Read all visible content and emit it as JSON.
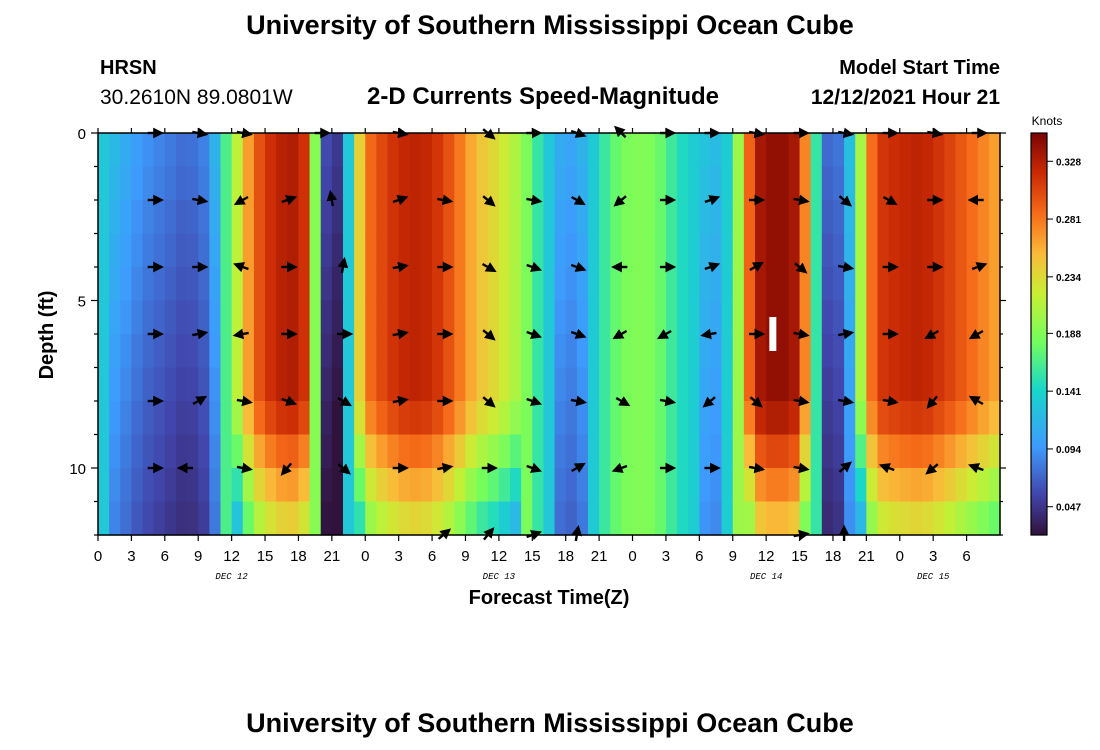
{
  "header": {
    "title": "University of Southern Mississippi Ocean Cube",
    "station": "HRSN",
    "coords": "30.2610N  89.0801W",
    "subtitle": "2-D Currents Speed-Magnitude",
    "model_start_label": "Model Start Time",
    "model_start_value": "12/12/2021 Hour 21"
  },
  "footer": {
    "title": "University of Southern Mississippi Ocean Cube"
  },
  "chart_data": {
    "type": "heatmap",
    "title": "2-D Currents Speed-Magnitude",
    "xlabel": "Forecast Time(Z)",
    "ylabel": "Depth (ft)",
    "colorbar_label": "Knots",
    "colorbar_ticks": [
      0.047,
      0.094,
      0.141,
      0.188,
      0.234,
      0.281,
      0.328
    ],
    "colorbar_range": [
      0.024,
      0.351
    ],
    "x_range_hours": [
      0,
      81
    ],
    "y_range_ft": [
      0,
      12
    ],
    "x_ticks": [
      {
        "h": 0,
        "label": "0"
      },
      {
        "h": 3,
        "label": "3"
      },
      {
        "h": 6,
        "label": "6"
      },
      {
        "h": 9,
        "label": "9"
      },
      {
        "h": 12,
        "label": "12"
      },
      {
        "h": 15,
        "label": "15"
      },
      {
        "h": 18,
        "label": "18"
      },
      {
        "h": 21,
        "label": "21"
      },
      {
        "h": 24,
        "label": "0"
      },
      {
        "h": 27,
        "label": "3"
      },
      {
        "h": 30,
        "label": "6"
      },
      {
        "h": 33,
        "label": "9"
      },
      {
        "h": 36,
        "label": "12"
      },
      {
        "h": 39,
        "label": "15"
      },
      {
        "h": 42,
        "label": "18"
      },
      {
        "h": 45,
        "label": "21"
      },
      {
        "h": 48,
        "label": "0"
      },
      {
        "h": 51,
        "label": "3"
      },
      {
        "h": 54,
        "label": "6"
      },
      {
        "h": 57,
        "label": "9"
      },
      {
        "h": 60,
        "label": "12"
      },
      {
        "h": 63,
        "label": "15"
      },
      {
        "h": 66,
        "label": "18"
      },
      {
        "h": 69,
        "label": "21"
      },
      {
        "h": 72,
        "label": "0"
      },
      {
        "h": 75,
        "label": "3"
      },
      {
        "h": 78,
        "label": "6"
      }
    ],
    "y_ticks": [
      {
        "v": 0,
        "label": "0"
      },
      {
        "v": 5,
        "label": "5"
      },
      {
        "v": 10,
        "label": "10"
      }
    ],
    "date_labels": [
      {
        "h": 12,
        "label": "DEC 12"
      },
      {
        "h": 36,
        "label": "DEC 13"
      },
      {
        "h": 60,
        "label": "DEC 14"
      },
      {
        "h": 75,
        "label": "DEC 15"
      }
    ],
    "current_time_marker": {
      "h": 60.6,
      "depth": 6
    },
    "speed_profile": [
      {
        "h": 0,
        "s": 0.135
      },
      {
        "h": 2,
        "s": 0.115
      },
      {
        "h": 4,
        "s": 0.095
      },
      {
        "h": 6,
        "s": 0.085
      },
      {
        "h": 8,
        "s": 0.075
      },
      {
        "h": 10,
        "s": 0.09
      },
      {
        "h": 11,
        "s": 0.14
      },
      {
        "h": 12,
        "s": 0.19
      },
      {
        "h": 13,
        "s": 0.24
      },
      {
        "h": 14,
        "s": 0.29
      },
      {
        "h": 16,
        "s": 0.325
      },
      {
        "h": 18,
        "s": 0.33
      },
      {
        "h": 19,
        "s": 0.3
      },
      {
        "h": 20,
        "s": 0.08
      },
      {
        "h": 21,
        "s": 0.04
      },
      {
        "h": 22,
        "s": 0.06
      },
      {
        "h": 23,
        "s": 0.2
      },
      {
        "h": 24,
        "s": 0.28
      },
      {
        "h": 26,
        "s": 0.31
      },
      {
        "h": 28,
        "s": 0.325
      },
      {
        "h": 30,
        "s": 0.32
      },
      {
        "h": 32,
        "s": 0.29
      },
      {
        "h": 34,
        "s": 0.25
      },
      {
        "h": 36,
        "s": 0.23
      },
      {
        "h": 38,
        "s": 0.2
      },
      {
        "h": 40,
        "s": 0.14
      },
      {
        "h": 42,
        "s": 0.1
      },
      {
        "h": 44,
        "s": 0.12
      },
      {
        "h": 46,
        "s": 0.17
      },
      {
        "h": 48,
        "s": 0.19
      },
      {
        "h": 50,
        "s": 0.185
      },
      {
        "h": 52,
        "s": 0.15
      },
      {
        "h": 54,
        "s": 0.13
      },
      {
        "h": 56,
        "s": 0.12
      },
      {
        "h": 57,
        "s": 0.15
      },
      {
        "h": 58,
        "s": 0.25
      },
      {
        "h": 59,
        "s": 0.33
      },
      {
        "h": 61,
        "s": 0.345
      },
      {
        "h": 63,
        "s": 0.33
      },
      {
        "h": 64,
        "s": 0.22
      },
      {
        "h": 65,
        "s": 0.09
      },
      {
        "h": 66,
        "s": 0.06
      },
      {
        "h": 67,
        "s": 0.1
      },
      {
        "h": 68,
        "s": 0.15
      },
      {
        "h": 69,
        "s": 0.26
      },
      {
        "h": 70,
        "s": 0.31
      },
      {
        "h": 72,
        "s": 0.32
      },
      {
        "h": 74,
        "s": 0.325
      },
      {
        "h": 76,
        "s": 0.31
      },
      {
        "h": 78,
        "s": 0.29
      },
      {
        "h": 80,
        "s": 0.27
      },
      {
        "h": 81,
        "s": 0.26
      }
    ],
    "vectors": [
      {
        "h": 5,
        "d": 0,
        "a": 0
      },
      {
        "h": 9,
        "d": 0,
        "a": 10
      },
      {
        "h": 13,
        "d": 0,
        "a": 10
      },
      {
        "h": 20,
        "d": 0,
        "a": 0
      },
      {
        "h": 27,
        "d": 0,
        "a": 10
      },
      {
        "h": 35,
        "d": 0,
        "a": 40
      },
      {
        "h": 39,
        "d": 0,
        "a": 0
      },
      {
        "h": 43,
        "d": 0,
        "a": 20
      },
      {
        "h": 47,
        "d": 0,
        "a": -135
      },
      {
        "h": 51,
        "d": 0,
        "a": 0
      },
      {
        "h": 55,
        "d": 0,
        "a": 0
      },
      {
        "h": 59,
        "d": 0,
        "a": 10
      },
      {
        "h": 63,
        "d": 0,
        "a": 0
      },
      {
        "h": 67,
        "d": 0,
        "a": 10
      },
      {
        "h": 71,
        "d": 0,
        "a": 0
      },
      {
        "h": 75,
        "d": 0,
        "a": 10
      },
      {
        "h": 79,
        "d": 0,
        "a": 0
      },
      {
        "h": 5,
        "d": 2,
        "a": 0
      },
      {
        "h": 9,
        "d": 2,
        "a": 10
      },
      {
        "h": 13,
        "d": 2,
        "a": 150
      },
      {
        "h": 17,
        "d": 2,
        "a": -20
      },
      {
        "h": 21,
        "d": 2,
        "a": -100
      },
      {
        "h": 27,
        "d": 2,
        "a": -20
      },
      {
        "h": 31,
        "d": 2,
        "a": 10
      },
      {
        "h": 35,
        "d": 2,
        "a": 40
      },
      {
        "h": 39,
        "d": 2,
        "a": 10
      },
      {
        "h": 43,
        "d": 2,
        "a": 30
      },
      {
        "h": 47,
        "d": 2,
        "a": 140
      },
      {
        "h": 51,
        "d": 2,
        "a": 0
      },
      {
        "h": 55,
        "d": 2,
        "a": -20
      },
      {
        "h": 59,
        "d": 2,
        "a": 0
      },
      {
        "h": 63,
        "d": 2,
        "a": 10
      },
      {
        "h": 67,
        "d": 2,
        "a": 40
      },
      {
        "h": 71,
        "d": 2,
        "a": 30
      },
      {
        "h": 75,
        "d": 2,
        "a": 0
      },
      {
        "h": 79,
        "d": 2,
        "a": 180
      },
      {
        "h": 5,
        "d": 4,
        "a": 0
      },
      {
        "h": 9,
        "d": 4,
        "a": 0
      },
      {
        "h": 13,
        "d": 4,
        "a": -160
      },
      {
        "h": 17,
        "d": 4,
        "a": 0
      },
      {
        "h": 22,
        "d": 4,
        "a": -80
      },
      {
        "h": 27,
        "d": 4,
        "a": -10
      },
      {
        "h": 31,
        "d": 4,
        "a": 0
      },
      {
        "h": 35,
        "d": 4,
        "a": 30
      },
      {
        "h": 39,
        "d": 4,
        "a": 20
      },
      {
        "h": 43,
        "d": 4,
        "a": 20
      },
      {
        "h": 47,
        "d": 4,
        "a": 180
      },
      {
        "h": 51,
        "d": 4,
        "a": 0
      },
      {
        "h": 55,
        "d": 4,
        "a": -20
      },
      {
        "h": 59,
        "d": 4,
        "a": -30
      },
      {
        "h": 63,
        "d": 4,
        "a": 40
      },
      {
        "h": 67,
        "d": 4,
        "a": 10
      },
      {
        "h": 71,
        "d": 4,
        "a": 0
      },
      {
        "h": 75,
        "d": 4,
        "a": 0
      },
      {
        "h": 79,
        "d": 4,
        "a": -20
      },
      {
        "h": 5,
        "d": 6,
        "a": 0
      },
      {
        "h": 9,
        "d": 6,
        "a": -10
      },
      {
        "h": 13,
        "d": 6,
        "a": 170
      },
      {
        "h": 17,
        "d": 6,
        "a": 0
      },
      {
        "h": 22,
        "d": 6,
        "a": 0
      },
      {
        "h": 27,
        "d": 6,
        "a": -10
      },
      {
        "h": 31,
        "d": 6,
        "a": 0
      },
      {
        "h": 35,
        "d": 6,
        "a": 40
      },
      {
        "h": 39,
        "d": 6,
        "a": 20
      },
      {
        "h": 43,
        "d": 6,
        "a": 20
      },
      {
        "h": 47,
        "d": 6,
        "a": 150
      },
      {
        "h": 51,
        "d": 6,
        "a": 150
      },
      {
        "h": 55,
        "d": 6,
        "a": 170
      },
      {
        "h": 59,
        "d": 6,
        "a": 0
      },
      {
        "h": 63,
        "d": 6,
        "a": 10
      },
      {
        "h": 67,
        "d": 6,
        "a": -10
      },
      {
        "h": 71,
        "d": 6,
        "a": 0
      },
      {
        "h": 75,
        "d": 6,
        "a": 150
      },
      {
        "h": 79,
        "d": 6,
        "a": 150
      },
      {
        "h": 5,
        "d": 8,
        "a": 0
      },
      {
        "h": 9,
        "d": 8,
        "a": -30
      },
      {
        "h": 13,
        "d": 8,
        "a": 10
      },
      {
        "h": 17,
        "d": 8,
        "a": 20
      },
      {
        "h": 22,
        "d": 8,
        "a": 30
      },
      {
        "h": 27,
        "d": 8,
        "a": -10
      },
      {
        "h": 31,
        "d": 8,
        "a": 0
      },
      {
        "h": 35,
        "d": 8,
        "a": 40
      },
      {
        "h": 39,
        "d": 8,
        "a": 20
      },
      {
        "h": 43,
        "d": 8,
        "a": 10
      },
      {
        "h": 47,
        "d": 8,
        "a": 30
      },
      {
        "h": 51,
        "d": 8,
        "a": 10
      },
      {
        "h": 55,
        "d": 8,
        "a": 140
      },
      {
        "h": 59,
        "d": 8,
        "a": 40
      },
      {
        "h": 63,
        "d": 8,
        "a": 10
      },
      {
        "h": 67,
        "d": 8,
        "a": 10
      },
      {
        "h": 71,
        "d": 8,
        "a": 10
      },
      {
        "h": 75,
        "d": 8,
        "a": 130
      },
      {
        "h": 79,
        "d": 8,
        "a": -150
      },
      {
        "h": 5,
        "d": 10,
        "a": 0
      },
      {
        "h": 8,
        "d": 10,
        "a": -180
      },
      {
        "h": 13,
        "d": 10,
        "a": 10
      },
      {
        "h": 17,
        "d": 10,
        "a": 130
      },
      {
        "h": 22,
        "d": 10,
        "a": 40
      },
      {
        "h": 27,
        "d": 10,
        "a": 0
      },
      {
        "h": 31,
        "d": 10,
        "a": -10
      },
      {
        "h": 35,
        "d": 10,
        "a": 0
      },
      {
        "h": 39,
        "d": 10,
        "a": 20
      },
      {
        "h": 43,
        "d": 10,
        "a": -30
      },
      {
        "h": 47,
        "d": 10,
        "a": 160
      },
      {
        "h": 51,
        "d": 10,
        "a": 0
      },
      {
        "h": 55,
        "d": 10,
        "a": 0
      },
      {
        "h": 59,
        "d": 10,
        "a": 10
      },
      {
        "h": 63,
        "d": 10,
        "a": 10
      },
      {
        "h": 67,
        "d": 10,
        "a": -40
      },
      {
        "h": 71,
        "d": 10,
        "a": -160
      },
      {
        "h": 75,
        "d": 10,
        "a": 140
      },
      {
        "h": 79,
        "d": 10,
        "a": -160
      },
      {
        "h": 31,
        "d": 12,
        "a": -40
      },
      {
        "h": 35,
        "d": 12,
        "a": -50
      },
      {
        "h": 39,
        "d": 12,
        "a": -20
      },
      {
        "h": 43,
        "d": 12,
        "a": -80
      },
      {
        "h": 63,
        "d": 12,
        "a": -10
      },
      {
        "h": 67,
        "d": 12,
        "a": -90
      }
    ]
  }
}
